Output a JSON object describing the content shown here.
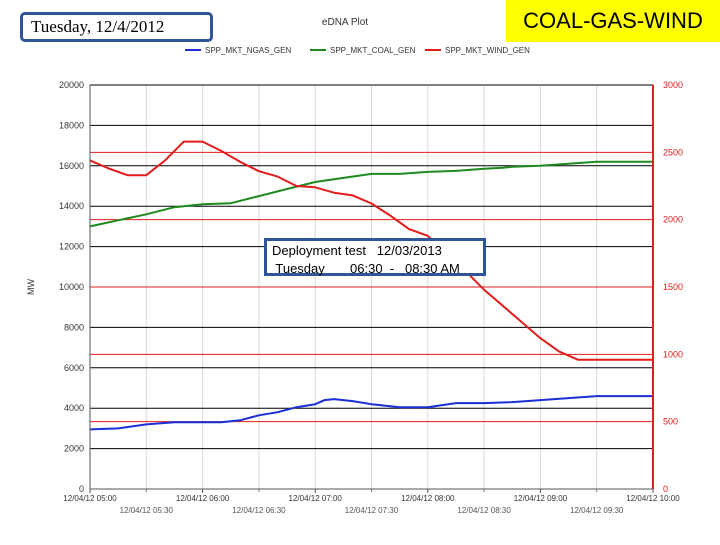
{
  "header": {
    "date_label": "Tuesday, 12/4/2012",
    "plot_title": "eDNA Plot",
    "badge_title": "COAL-GAS-WIND"
  },
  "annotation": {
    "line1": "Deployment test   12/03/2013",
    "line2": " Tuesday       06:30  -   08:30 AM"
  },
  "colors": {
    "ngas": "#1a2fd6",
    "coal": "#1e8a1e",
    "wind": "#e21b1b",
    "gridline_black": "#000000",
    "gridline_red": "#e21b1b",
    "plot_bg": "#ffffff",
    "badge_bg": "#ffff00",
    "box_border": "#2f5597"
  },
  "chart_data": {
    "type": "line",
    "title": "eDNA Plot",
    "ylabel": "MW",
    "ylim_left": [
      0,
      20000
    ],
    "ylim_right": [
      0,
      3000
    ],
    "yticks_left": [
      "0",
      "2000",
      "4000",
      "6000",
      "8000",
      "10000",
      "12000",
      "14000",
      "16000",
      "18000",
      "20000"
    ],
    "yticks_right": [
      "0",
      "500",
      "1000",
      "1500",
      "2000",
      "2500",
      "3000"
    ],
    "xlim": [
      "2012-12-04 05:00",
      "2012-12-04 10:00"
    ],
    "xticks_major": [
      "12/04/12 05:00",
      "12/04/12 06:00",
      "12/04/12 07:00",
      "12/04/12 08:00",
      "12/04/12 09:00",
      "12/04/12 10:00"
    ],
    "xticks_minor": [
      "12/04/12 05:30",
      "12/04/12 06:30",
      "12/04/12 07:30",
      "12/04/12 08:30",
      "12/04/12 09:30"
    ],
    "legend_position": "top",
    "grid": true,
    "series": [
      {
        "name": "SPP_MKT_NGAS_GEN",
        "axis": "left",
        "x": [
          "05:00",
          "05:15",
          "05:30",
          "05:45",
          "06:00",
          "06:10",
          "06:20",
          "06:30",
          "06:40",
          "06:50",
          "07:00",
          "07:05",
          "07:10",
          "07:20",
          "07:30",
          "07:45",
          "08:00",
          "08:15",
          "08:30",
          "08:45",
          "09:00",
          "09:15",
          "09:30",
          "09:45",
          "10:00",
          "10:00"
        ],
        "values": [
          2950,
          3000,
          3200,
          3300,
          3300,
          3300,
          3400,
          3650,
          3800,
          4050,
          4200,
          4400,
          4450,
          4350,
          4200,
          4050,
          4050,
          4250,
          4250,
          4300,
          4400,
          4500,
          4600,
          4600,
          4600,
          4700
        ]
      },
      {
        "name": "SPP_MKT_COAL_GEN",
        "axis": "left",
        "x": [
          "05:00",
          "05:15",
          "05:30",
          "05:45",
          "06:00",
          "06:15",
          "06:30",
          "06:45",
          "07:00",
          "07:15",
          "07:30",
          "07:45",
          "08:00",
          "08:15",
          "08:30",
          "08:40",
          "08:45",
          "09:00",
          "09:15",
          "09:30",
          "09:45",
          "10:00",
          "10:00"
        ],
        "values": [
          13000,
          13300,
          13600,
          13950,
          14100,
          14150,
          14500,
          14850,
          15200,
          15400,
          15600,
          15600,
          15700,
          15750,
          15850,
          15900,
          15950,
          16000,
          16100,
          16200,
          16200,
          16200,
          16400
        ]
      },
      {
        "name": "SPP_MKT_WIND_GEN",
        "axis": "right",
        "x": [
          "05:00",
          "05:10",
          "05:20",
          "05:30",
          "05:40",
          "05:50",
          "06:00",
          "06:10",
          "06:20",
          "06:30",
          "06:40",
          "06:50",
          "07:00",
          "07:10",
          "07:20",
          "07:30",
          "07:40",
          "07:50",
          "08:00",
          "08:10",
          "08:20",
          "08:30",
          "08:40",
          "08:50",
          "09:00",
          "09:10",
          "09:20",
          "09:30",
          "09:40",
          "09:50",
          "10:00",
          "10:00"
        ],
        "values": [
          2440,
          2380,
          2330,
          2330,
          2440,
          2580,
          2580,
          2510,
          2430,
          2360,
          2320,
          2250,
          2240,
          2200,
          2180,
          2120,
          2030,
          1930,
          1880,
          1750,
          1620,
          1480,
          1360,
          1240,
          1120,
          1020,
          960,
          960,
          960,
          960,
          960,
          700
        ]
      }
    ]
  }
}
